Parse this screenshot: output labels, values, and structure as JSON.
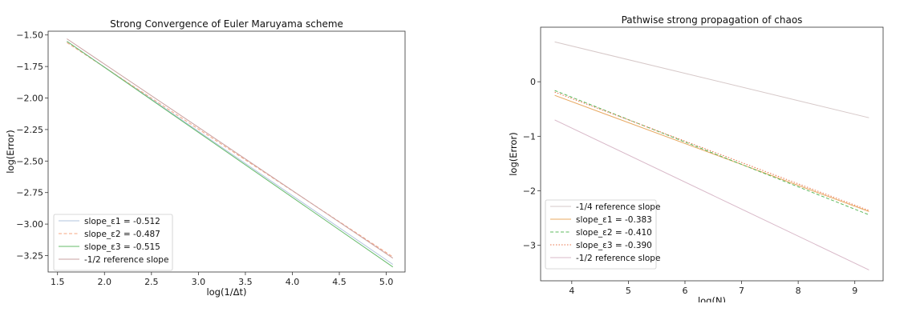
{
  "chart_data": [
    {
      "type": "line",
      "title": "Strong Convergence of Euler Maruyama scheme",
      "xlabel": "log(1/Δt)",
      "ylabel": "log(Error)",
      "xlim": [
        1.4,
        5.2
      ],
      "ylim": [
        -3.38,
        -1.47
      ],
      "xticks": [
        1.5,
        2.0,
        2.5,
        3.0,
        3.5,
        4.0,
        4.5,
        5.0
      ],
      "xtick_labels": [
        "1.5",
        "2.0",
        "2.5",
        "3.0",
        "3.5",
        "4.0",
        "4.5",
        "5.0"
      ],
      "yticks": [
        -1.5,
        -1.75,
        -2.0,
        -2.25,
        -2.5,
        -2.75,
        -3.0,
        -3.25
      ],
      "ytick_labels": [
        "−1.50",
        "−1.75",
        "−2.00",
        "−2.25",
        "−2.50",
        "−2.75",
        "−3.00",
        "−3.25"
      ],
      "grid": false,
      "legend_position": "lower-left",
      "series": [
        {
          "name": "slope_ε1 = -0.512",
          "x": [
            1.6,
            5.07
          ],
          "y": [
            -1.55,
            -3.32
          ],
          "color": "#b0c4de",
          "dash": "solid"
        },
        {
          "name": "slope_ε2 = -0.487",
          "x": [
            1.6,
            5.07
          ],
          "y": [
            -1.56,
            -3.26
          ],
          "color": "#f4a582",
          "dash": "dashed"
        },
        {
          "name": "slope_ε3 = -0.515",
          "x": [
            1.6,
            5.07
          ],
          "y": [
            -1.55,
            -3.34
          ],
          "color": "#66bb6a",
          "dash": "solid"
        },
        {
          "name": "-1/2 reference slope",
          "x": [
            1.6,
            5.07
          ],
          "y": [
            -1.53,
            -3.27
          ],
          "color": "#c9a0a0",
          "dash": "solid"
        }
      ]
    },
    {
      "type": "line",
      "title": "Pathwise strong propagation of chaos",
      "xlabel": "log(N)",
      "ylabel": "log(Error)",
      "xlim": [
        3.45,
        9.5
      ],
      "ylim": [
        -3.65,
        1.0
      ],
      "xticks": [
        4,
        5,
        6,
        7,
        8,
        9
      ],
      "xtick_labels": [
        "4",
        "5",
        "6",
        "7",
        "8",
        "9"
      ],
      "yticks": [
        0,
        -1,
        -2,
        -3
      ],
      "ytick_labels": [
        "0",
        "−1",
        "−2",
        "−3"
      ],
      "grid": false,
      "legend_position": "lower-left",
      "series": [
        {
          "name": "-1/4 reference slope",
          "x": [
            3.7,
            9.25
          ],
          "y": [
            0.73,
            -0.66
          ],
          "color": "#d6c8c8",
          "dash": "solid"
        },
        {
          "name": "slope_ε1 = -0.383",
          "x": [
            3.7,
            9.25
          ],
          "y": [
            -0.25,
            -2.38
          ],
          "color": "#e8a860",
          "dash": "solid"
        },
        {
          "name": "slope_ε2 = -0.410",
          "x": [
            3.7,
            9.25
          ],
          "y": [
            -0.16,
            -2.44
          ],
          "color": "#5cb85c",
          "dash": "dashed"
        },
        {
          "name": "slope_ε3 = -0.390",
          "x": [
            3.7,
            9.25
          ],
          "y": [
            -0.19,
            -2.36
          ],
          "color": "#e8734a",
          "dash": "dotted"
        },
        {
          "name": "-1/2 reference slope",
          "x": [
            3.7,
            9.25
          ],
          "y": [
            -0.7,
            -3.45
          ],
          "color": "#d8b8c8",
          "dash": "solid"
        }
      ]
    }
  ]
}
